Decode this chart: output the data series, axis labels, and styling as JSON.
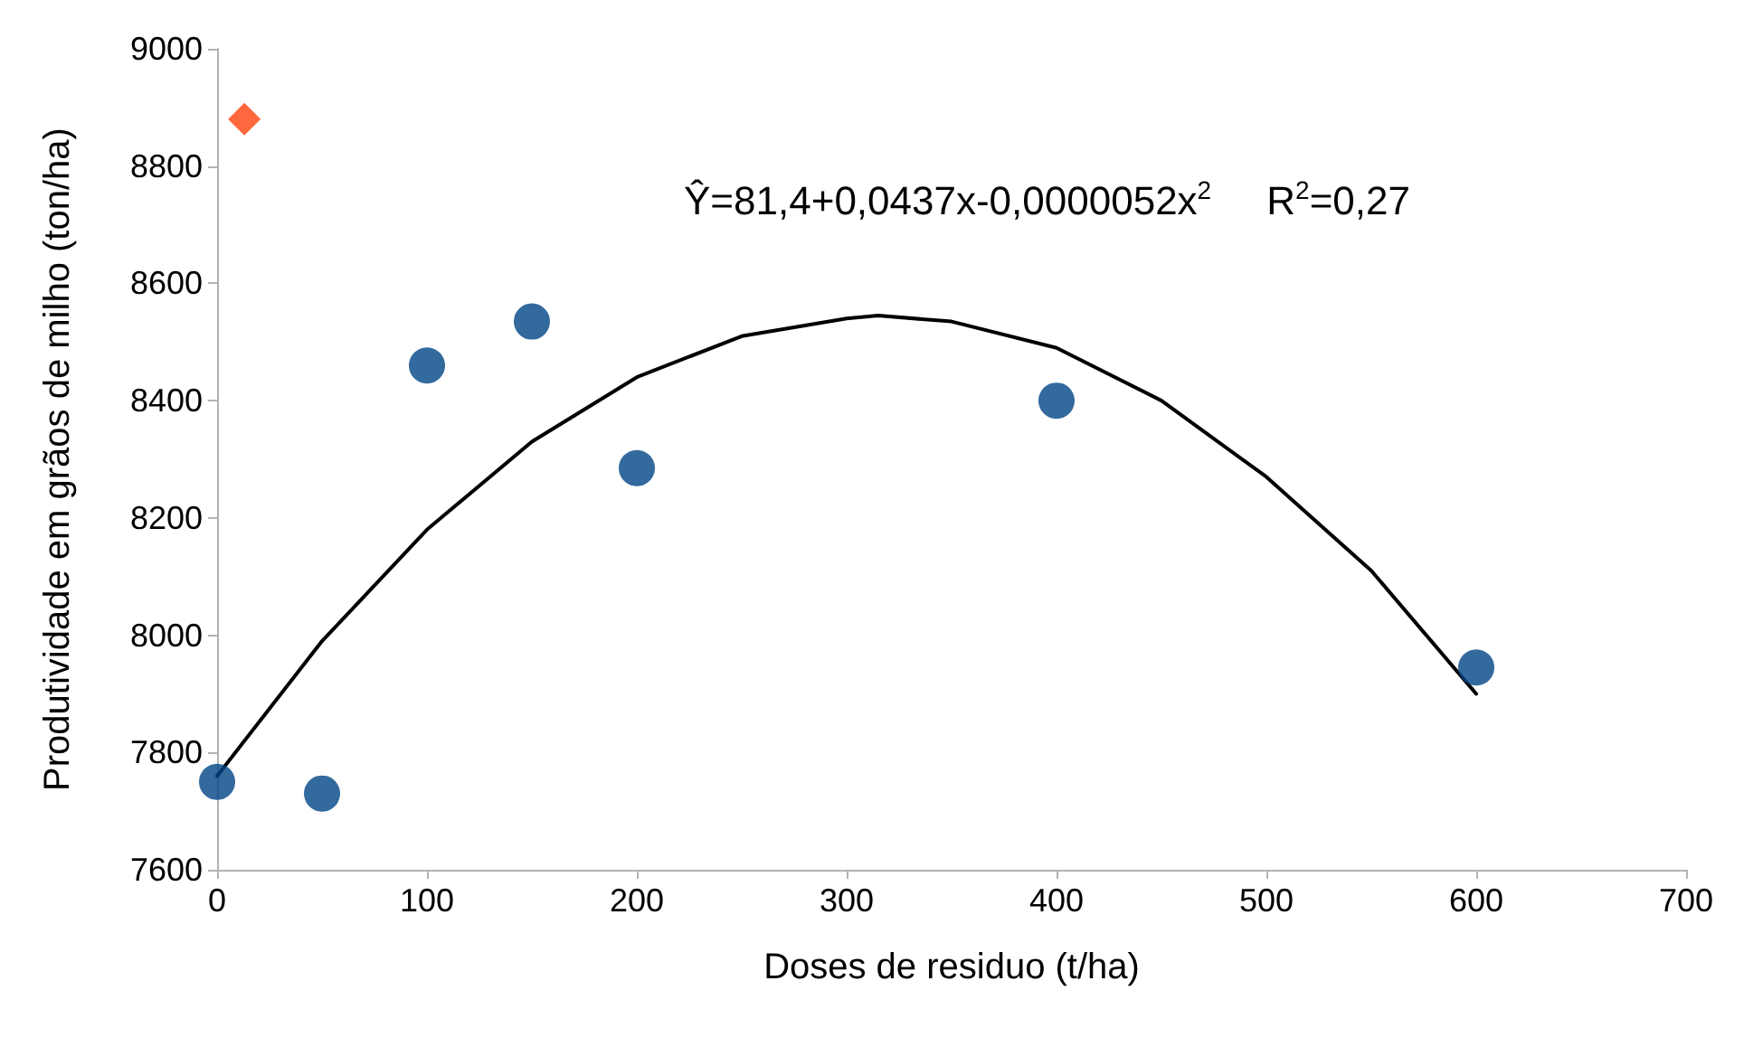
{
  "chart_data": {
    "type": "scatter",
    "xlabel": "Doses de residuo (t/ha)",
    "ylabel": "Produtividade em grãos de milho (ton/ha)",
    "xlim": [
      0,
      700
    ],
    "xticks": [
      0,
      100,
      200,
      300,
      400,
      500,
      600,
      700
    ],
    "ylim": [
      7600,
      9000
    ],
    "yticks": [
      7600,
      7800,
      8000,
      8200,
      8400,
      8600,
      8800,
      9000
    ],
    "grid": false,
    "annotations": [
      "Ŷ=81,4+0,0437x-0,0000052x$^{2}$     R$^{2}$=0,27"
    ],
    "series": [
      {
        "marker": "circle",
        "color": "#004586",
        "x": [
          0,
          50,
          100,
          150,
          200,
          400,
          600
        ],
        "values": [
          7750,
          7730,
          8460,
          8535,
          8285,
          8400,
          7945
        ]
      },
      {
        "marker": "diamond",
        "color": "#ff420e",
        "x": [
          13
        ],
        "values": [
          8880
        ]
      },
      {
        "type": "line",
        "marker": "none",
        "line_style": "solid",
        "color": "#000000",
        "x": [
          0,
          50,
          100,
          150,
          200,
          250,
          300,
          315,
          350,
          400,
          450,
          500,
          550,
          600
        ],
        "values": [
          7760,
          7990,
          8180,
          8330,
          8440,
          8510,
          8540,
          8545,
          8535,
          8490,
          8400,
          8270,
          8110,
          7900
        ]
      }
    ]
  }
}
